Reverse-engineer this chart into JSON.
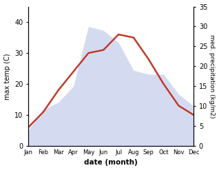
{
  "months": [
    "Jan",
    "Feb",
    "Mar",
    "Apr",
    "May",
    "Jun",
    "Jul",
    "Aug",
    "Sep",
    "Oct",
    "Nov",
    "Dec"
  ],
  "temp": [
    6,
    11,
    18,
    24,
    30,
    31,
    36,
    35,
    28,
    20,
    13,
    10
  ],
  "precip": [
    4,
    9,
    11,
    15,
    30,
    29,
    26,
    19,
    18,
    18,
    13,
    10
  ],
  "temp_color": "#c0392b",
  "precip_fill_color": "#b8c4e8",
  "temp_ylim": [
    0,
    45
  ],
  "precip_ylim": [
    0,
    35
  ],
  "temp_yticks": [
    0,
    10,
    20,
    30,
    40
  ],
  "precip_yticks": [
    0,
    5,
    10,
    15,
    20,
    25,
    30,
    35
  ],
  "xlabel": "date (month)",
  "ylabel_left": "max temp (C)",
  "ylabel_right": "med. precipitation (kg/m2)"
}
